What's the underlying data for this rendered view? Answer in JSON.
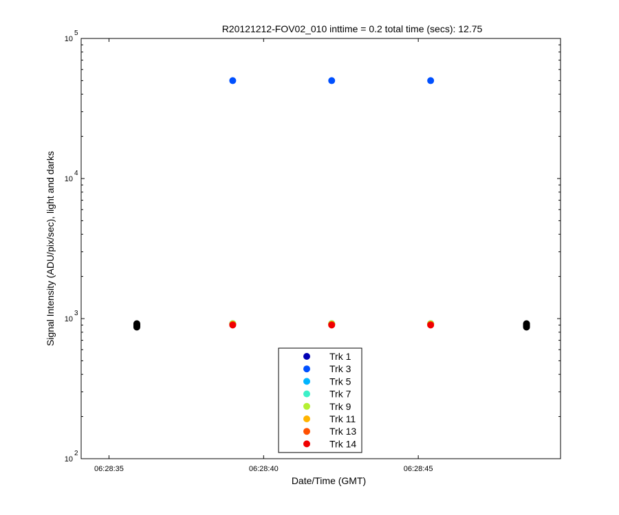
{
  "chart_data": {
    "type": "scatter",
    "title": "R20121212-FOV02_010 inttime = 0.2 total time (secs): 12.75",
    "xlabel": "Date/Time (GMT)",
    "ylabel": "Signal Intensity (ADU/pix/sec), light and darks",
    "y_scale": "log",
    "ylim": [
      100,
      100000
    ],
    "xlim": [
      "06:28:34.1",
      "06:28:49.6"
    ],
    "x_ticks": [
      "06:28:35",
      "06:28:40",
      "06:28:45"
    ],
    "y_ticks": [
      {
        "base": "10",
        "exp": "2",
        "value": 100
      },
      {
        "base": "10",
        "exp": "3",
        "value": 1000
      },
      {
        "base": "10",
        "exp": "4",
        "value": 10000
      },
      {
        "base": "10",
        "exp": "5",
        "value": 100000
      }
    ],
    "grid": false,
    "legend_position": "bottom-center",
    "series": [
      {
        "name": "Trk 1",
        "color": "#0000b4",
        "points": [
          [
            "06:28:39",
            920
          ],
          [
            "06:28:42.2",
            920
          ],
          [
            "06:28:45.4",
            920
          ]
        ]
      },
      {
        "name": "Trk 3",
        "color": "#0050ff",
        "points": [
          [
            "06:28:39",
            50000
          ],
          [
            "06:28:42.2",
            50000
          ],
          [
            "06:28:45.4",
            50000
          ]
        ]
      },
      {
        "name": "Trk 5",
        "color": "#00b4ff",
        "points": [
          [
            "06:28:39",
            920
          ],
          [
            "06:28:42.2",
            920
          ],
          [
            "06:28:45.4",
            920
          ]
        ]
      },
      {
        "name": "Trk 7",
        "color": "#3cf0c8",
        "points": [
          [
            "06:28:39",
            920
          ],
          [
            "06:28:42.2",
            920
          ],
          [
            "06:28:45.4",
            920
          ]
        ]
      },
      {
        "name": "Trk 9",
        "color": "#b4f032",
        "points": [
          [
            "06:28:39",
            920
          ],
          [
            "06:28:42.2",
            920
          ],
          [
            "06:28:45.4",
            920
          ]
        ]
      },
      {
        "name": "Trk 11",
        "color": "#ffb400",
        "points": [
          [
            "06:28:39",
            910
          ],
          [
            "06:28:42.2",
            910
          ],
          [
            "06:28:45.4",
            910
          ]
        ]
      },
      {
        "name": "Trk 13",
        "color": "#ff5000",
        "points": [
          [
            "06:28:39",
            905
          ],
          [
            "06:28:42.2",
            905
          ],
          [
            "06:28:45.4",
            905
          ]
        ]
      },
      {
        "name": "Trk 14",
        "color": "#f00000",
        "points": [
          [
            "06:28:39",
            900
          ],
          [
            "06:28:42.2",
            900
          ],
          [
            "06:28:45.4",
            900
          ]
        ]
      }
    ],
    "dark_points": {
      "color": "#000000",
      "points": [
        [
          "06:28:35.9",
          870
        ],
        [
          "06:28:35.9",
          880
        ],
        [
          "06:28:35.9",
          890
        ],
        [
          "06:28:35.9",
          900
        ],
        [
          "06:28:35.9",
          910
        ],
        [
          "06:28:35.9",
          920
        ],
        [
          "06:28:48.5",
          870
        ],
        [
          "06:28:48.5",
          880
        ],
        [
          "06:28:48.5",
          890
        ],
        [
          "06:28:48.5",
          900
        ],
        [
          "06:28:48.5",
          910
        ],
        [
          "06:28:48.5",
          920
        ]
      ]
    }
  }
}
